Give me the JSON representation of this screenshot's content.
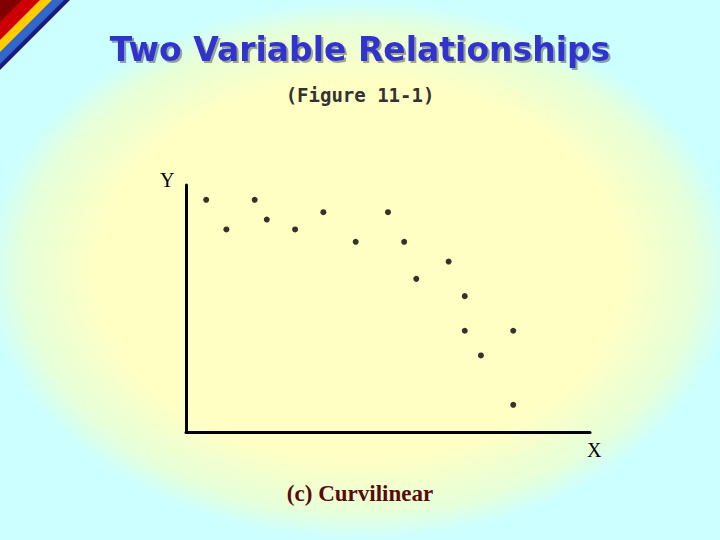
{
  "chart_data": {
    "type": "scatter",
    "title": "Two Variable Relationships",
    "subtitle": "(Figure 11-1)",
    "caption": "(c) Curvilinear",
    "xlabel": "X",
    "ylabel": "Y",
    "x": [
      0.5,
      1.0,
      1.7,
      2.0,
      2.7,
      3.4,
      4.2,
      5.0,
      5.4,
      5.7,
      6.5,
      6.9,
      6.9,
      7.3,
      8.1,
      8.1
    ],
    "values": [
      9.4,
      8.2,
      9.4,
      8.6,
      8.2,
      8.9,
      7.7,
      8.9,
      7.7,
      6.2,
      6.9,
      5.5,
      4.1,
      3.1,
      4.1,
      1.1
    ],
    "xlim": [
      0,
      10
    ],
    "ylim": [
      0,
      10
    ],
    "tick_labels": false,
    "grid": false,
    "color": "#000000",
    "marker": "circle"
  }
}
